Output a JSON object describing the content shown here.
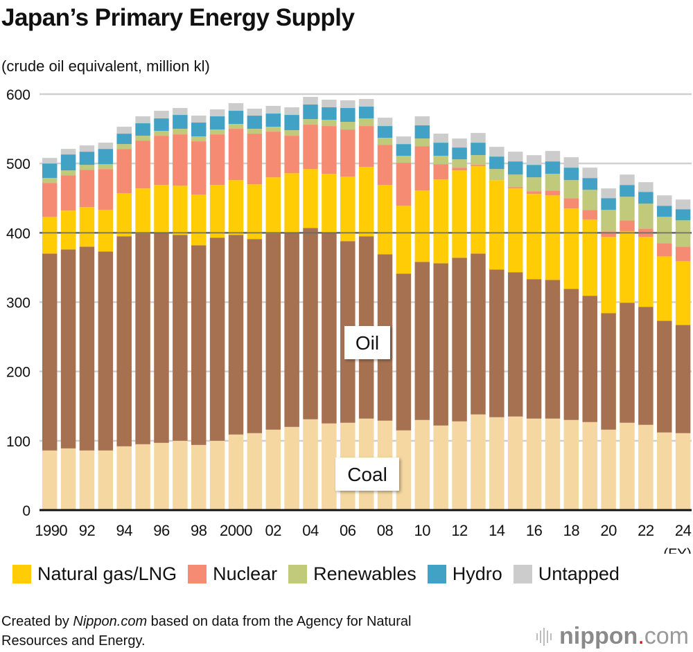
{
  "title": "Japan’s Primary Energy Supply",
  "subtitle": "(crude oil equivalent, million kl)",
  "chart_data": {
    "type": "bar",
    "stacked": true,
    "title": "Japan’s Primary Energy Supply",
    "ylabel": "(crude oil equivalent, million kl)",
    "xlabel": "(FY)",
    "ylim": [
      0,
      600
    ],
    "yticks": [
      0,
      100,
      200,
      300,
      400,
      500,
      600
    ],
    "grid": true,
    "legend_position": "bottom",
    "categories": [
      "1990",
      "1991",
      "1992",
      "1993",
      "1994",
      "1995",
      "1996",
      "1997",
      "1998",
      "1999",
      "2000",
      "2001",
      "2002",
      "2003",
      "2004",
      "2005",
      "2006",
      "2007",
      "2008",
      "2009",
      "2010",
      "2011",
      "2012",
      "2013",
      "2014",
      "2015",
      "2016",
      "2017",
      "2018",
      "2019",
      "2020",
      "2021",
      "2022",
      "2023",
      "2024"
    ],
    "tick_labels": [
      "1990",
      "92",
      "94",
      "96",
      "98",
      "2000",
      "02",
      "04",
      "06",
      "08",
      "10",
      "12",
      "14",
      "16",
      "18",
      "20",
      "22",
      "24"
    ],
    "series": [
      {
        "name": "Coal",
        "color": "#f5d7a1",
        "values": [
          86,
          89,
          86,
          86,
          92,
          95,
          97,
          100,
          94,
          100,
          109,
          111,
          116,
          120,
          131,
          125,
          126,
          132,
          129,
          115,
          130,
          122,
          128,
          138,
          134,
          135,
          132,
          132,
          130,
          127,
          116,
          126,
          123,
          112,
          111
        ]
      },
      {
        "name": "Oil",
        "color": "#a67151",
        "values": [
          284,
          287,
          294,
          287,
          303,
          304,
          303,
          297,
          288,
          293,
          288,
          280,
          283,
          280,
          276,
          275,
          262,
          263,
          240,
          226,
          228,
          234,
          236,
          232,
          213,
          208,
          201,
          200,
          189,
          182,
          168,
          173,
          170,
          161,
          156
        ]
      },
      {
        "name": "Natural gas/LNG",
        "color": "#ffcc05",
        "values": [
          53,
          56,
          57,
          60,
          62,
          65,
          69,
          71,
          73,
          76,
          79,
          79,
          81,
          86,
          85,
          85,
          93,
          100,
          100,
          98,
          103,
          121,
          126,
          126,
          129,
          121,
          123,
          122,
          116,
          110,
          110,
          103,
          101,
          93,
          92
        ]
      },
      {
        "name": "Nuclear",
        "color": "#f58b73",
        "values": [
          49,
          51,
          54,
          59,
          64,
          69,
          71,
          74,
          77,
          73,
          74,
          73,
          66,
          54,
          64,
          69,
          68,
          59,
          58,
          62,
          64,
          22,
          4,
          2,
          0,
          2,
          4,
          7,
          15,
          14,
          8,
          16,
          12,
          19,
          21
        ]
      },
      {
        "name": "Renewables",
        "color": "#c1ca7a",
        "values": [
          7,
          7,
          7,
          7,
          7,
          7,
          7,
          8,
          7,
          7,
          7,
          7,
          7,
          8,
          8,
          9,
          11,
          11,
          10,
          10,
          11,
          12,
          12,
          14,
          16,
          18,
          20,
          24,
          26,
          29,
          31,
          34,
          36,
          38,
          38
        ]
      },
      {
        "name": "Hydro",
        "color": "#41a2c5",
        "values": [
          21,
          23,
          19,
          22,
          15,
          18,
          18,
          20,
          20,
          19,
          19,
          19,
          19,
          22,
          21,
          18,
          20,
          17,
          17,
          17,
          19,
          19,
          17,
          18,
          18,
          19,
          18,
          18,
          18,
          17,
          17,
          17,
          17,
          16,
          16
        ]
      },
      {
        "name": "Untapped",
        "color": "#cccccc",
        "values": [
          8,
          8,
          9,
          9,
          10,
          10,
          11,
          10,
          10,
          10,
          11,
          10,
          11,
          11,
          11,
          11,
          11,
          11,
          12,
          11,
          13,
          13,
          13,
          14,
          14,
          14,
          14,
          15,
          15,
          15,
          14,
          15,
          14,
          15,
          14
        ]
      }
    ],
    "annotations": [
      "Oil",
      "Coal"
    ]
  },
  "legend": [
    {
      "label": "Natural gas/LNG",
      "color": "#ffcc05"
    },
    {
      "label": "Nuclear",
      "color": "#f58b73"
    },
    {
      "label": "Renewables",
      "color": "#c1ca7a"
    },
    {
      "label": "Hydro",
      "color": "#41a2c5"
    },
    {
      "label": "Untapped",
      "color": "#cccccc"
    }
  ],
  "footer": {
    "prefix": "Created by ",
    "brand": "Nippon.com",
    "suffix": " based on data from the Agency for Natural",
    "line2": "Resources and Energy."
  },
  "logo": {
    "name": "nippon",
    "dot": ".",
    "tld": "com"
  }
}
